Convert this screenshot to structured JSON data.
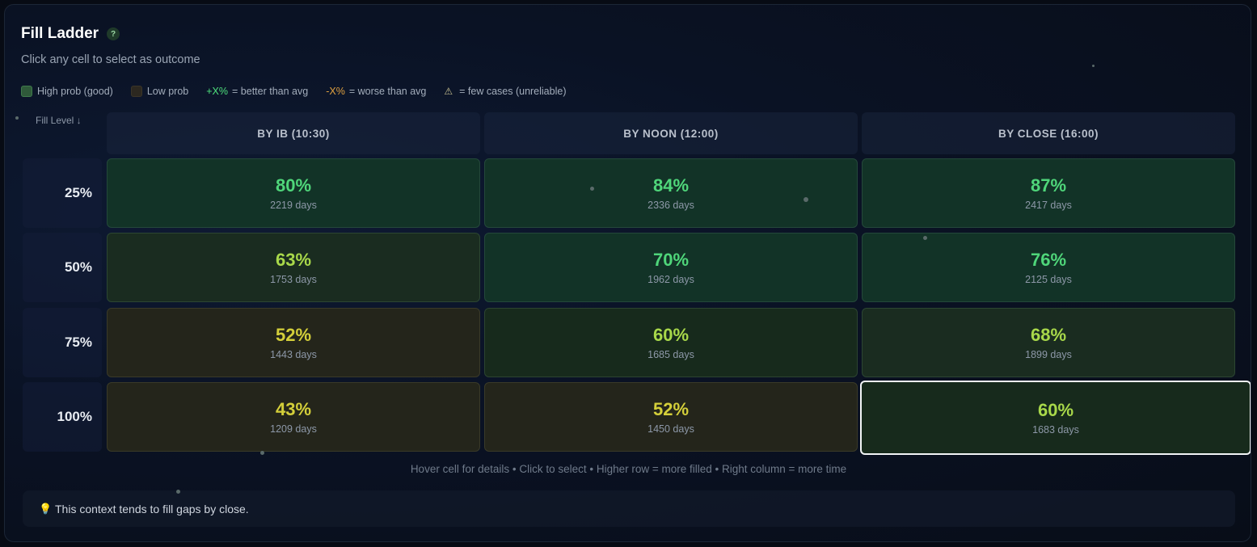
{
  "header": {
    "title": "Fill Ladder",
    "help_label": "?",
    "subtitle": "Click any cell to select as outcome"
  },
  "legend": {
    "high": "High prob (good)",
    "low": "Low prob",
    "better_token": "+X%",
    "better_text": "= better than avg",
    "worse_token": "-X%",
    "worse_text": "= worse than avg",
    "few_text": "= few cases (unreliable)"
  },
  "grid": {
    "row_axis_label": "Fill Level ↓",
    "columns": [
      "BY IB (10:30)",
      "BY NOON (12:00)",
      "BY CLOSE (16:00)"
    ],
    "rows": [
      {
        "label": "25%",
        "cells": [
          {
            "pct": "80%",
            "days": "2219 days"
          },
          {
            "pct": "84%",
            "days": "2336 days"
          },
          {
            "pct": "87%",
            "days": "2417 days"
          }
        ]
      },
      {
        "label": "50%",
        "cells": [
          {
            "pct": "63%",
            "days": "1753 days"
          },
          {
            "pct": "70%",
            "days": "1962 days"
          },
          {
            "pct": "76%",
            "days": "2125 days"
          }
        ]
      },
      {
        "label": "75%",
        "cells": [
          {
            "pct": "52%",
            "days": "1443 days"
          },
          {
            "pct": "60%",
            "days": "1685 days"
          },
          {
            "pct": "68%",
            "days": "1899 days"
          }
        ]
      },
      {
        "label": "100%",
        "cells": [
          {
            "pct": "43%",
            "days": "1209 days"
          },
          {
            "pct": "52%",
            "days": "1450 days"
          },
          {
            "pct": "60%",
            "days": "1683 days"
          }
        ]
      }
    ],
    "selected": {
      "row": 3,
      "col": 2
    }
  },
  "colors": {
    "pct_high": "#4fd67a",
    "pct_mid": "#a8d84a",
    "pct_low": "#d4cf3a",
    "bg_high": "#123327",
    "bg_mid": "#172a1c",
    "bg_low": "#24251b"
  },
  "hint": "Hover cell for details • Click to select • Higher row = more filled • Right column = more time",
  "context": {
    "icon": "lightbulb-icon",
    "text": "This context tends to fill gaps by close."
  }
}
